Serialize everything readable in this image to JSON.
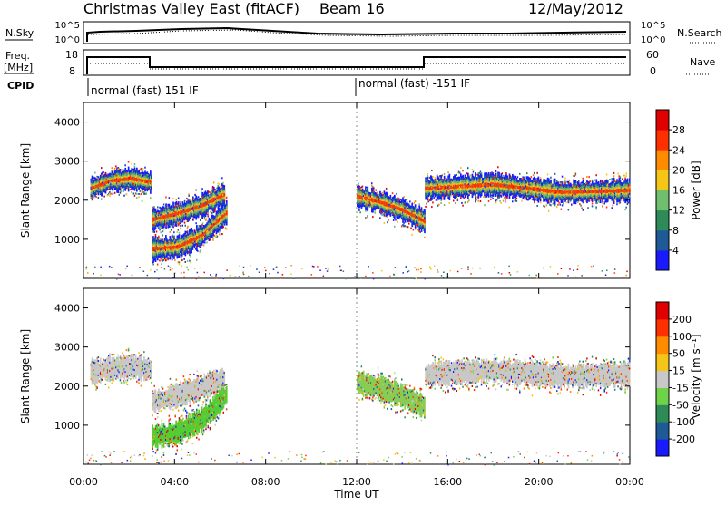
{
  "header": {
    "title": "Christmas Valley East (fitACF)",
    "beam": "Beam 16",
    "date": "12/May/2012"
  },
  "top_panels": {
    "nsky_label": "N.Sky",
    "nsky_ticks": [
      "10^5",
      "10^0"
    ],
    "nsearch_label": "N.Search",
    "nsearch_ticks": [
      "10^5",
      "10^0"
    ],
    "freq_label_line1": "Freq.",
    "freq_label_line2": "[MHz]",
    "freq_ticks": [
      "18",
      "8"
    ],
    "nave_label": "Nave",
    "nave_ticks": [
      "60",
      "0"
    ],
    "cpid_label": "CPID",
    "cpid_modes": [
      "normal (fast) 151 IF",
      "normal (fast) -151 IF"
    ]
  },
  "chart_data": [
    {
      "type": "heatmap",
      "name": "power",
      "ylabel": "Slant Range [km]",
      "yticks": [
        "1000",
        "2000",
        "3000",
        "4000"
      ],
      "ylim": [
        0,
        4500
      ],
      "xlim": [
        0,
        24
      ],
      "colorbar_label": "Power [dB]",
      "colorbar_ticks": [
        "4",
        "8",
        "12",
        "16",
        "20",
        "24",
        "28"
      ],
      "colorbar_colors": [
        "#1a1aff",
        "#1e5a96",
        "#2e8b57",
        "#6fbf6f",
        "#f5c518",
        "#ff8c00",
        "#ff3000",
        "#e00000"
      ],
      "echo_bands": [
        {
          "t0": 0.3,
          "t1": 3.0,
          "r": [
            2300,
            2500,
            2550,
            2450
          ]
        },
        {
          "t0": 3.0,
          "t1": 6.2,
          "r": [
            1500,
            1650,
            1850,
            2150
          ]
        },
        {
          "t0": 3.0,
          "t1": 6.3,
          "r": [
            750,
            800,
            1100,
            1700
          ]
        },
        {
          "t0": 12.0,
          "t1": 15.0,
          "r": [
            2100,
            1950,
            1750,
            1450
          ]
        },
        {
          "t0": 15.0,
          "t1": 24.0,
          "r": [
            2300,
            2400,
            2200,
            2250
          ]
        }
      ]
    },
    {
      "type": "heatmap",
      "name": "velocity",
      "ylabel": "Slant Range [km]",
      "yticks": [
        "1000",
        "2000",
        "3000",
        "4000"
      ],
      "ylim": [
        0,
        4500
      ],
      "xlim": [
        0,
        24
      ],
      "colorbar_label": "Velocity [m s⁻¹]",
      "colorbar_ticks": [
        "200",
        "100",
        "50",
        "15",
        "-15",
        "-50",
        "-100",
        "-200"
      ],
      "colorbar_colors": [
        "#1a1aff",
        "#1e5a96",
        "#2e8b57",
        "#6fd34a",
        "#c8c8c8",
        "#f5c518",
        "#ff8c00",
        "#ff3000",
        "#e00000"
      ],
      "echo_bands": [
        {
          "t0": 0.3,
          "t1": 3.0,
          "r": [
            2350,
            2450,
            2500,
            2400
          ],
          "color": "#c8c8c8"
        },
        {
          "t0": 3.0,
          "t1": 6.2,
          "r": [
            1600,
            1750,
            1950,
            2200
          ],
          "color": "#c8c8c8"
        },
        {
          "t0": 3.0,
          "t1": 6.3,
          "r": [
            700,
            800,
            1150,
            1800
          ],
          "color": "#55cc33"
        },
        {
          "t0": 12.0,
          "t1": 15.0,
          "r": [
            2100,
            1950,
            1750,
            1450
          ],
          "color": "#88cc55"
        },
        {
          "t0": 15.0,
          "t1": 24.0,
          "r": [
            2300,
            2400,
            2250,
            2300
          ],
          "color": "#c8c8c8"
        }
      ]
    }
  ],
  "xaxis": {
    "label": "Time UT",
    "ticks": [
      "00:00",
      "04:00",
      "08:00",
      "12:00",
      "16:00",
      "20:00",
      "00:00"
    ]
  }
}
